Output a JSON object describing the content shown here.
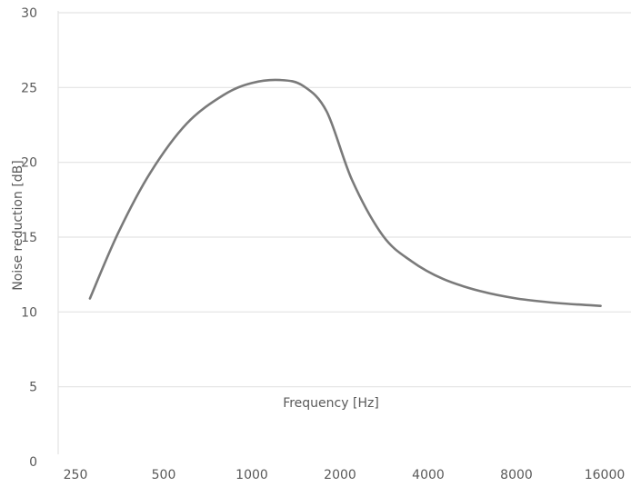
{
  "chart_data": {
    "type": "line",
    "title": "",
    "xlabel": "Frequency [Hz]",
    "ylabel": "Noise reduction [dB]",
    "x_scale": "log2",
    "x_ticks": [
      250,
      500,
      1000,
      2000,
      4000,
      8000,
      16000
    ],
    "x_tick_labels": [
      "250",
      "500",
      "1000",
      "2000",
      "4000",
      "8000",
      "16000"
    ],
    "y_ticks": [
      0,
      5,
      10,
      15,
      20,
      25,
      30
    ],
    "y_tick_labels": [
      "0",
      "5",
      "10",
      "15",
      "20",
      "25",
      "30"
    ],
    "ylim": [
      0,
      30
    ],
    "grid": "horizontal",
    "legend": "none",
    "line_color": "#7a7a7a",
    "grid_color": "#e3e3e3",
    "text_color": "#595959",
    "series": [
      {
        "x": [
          280,
          350,
          450,
          600,
          800,
          1000,
          1250,
          1500,
          1800,
          2200,
          2800,
          3500,
          4500,
          6000,
          8000,
          11000,
          15500
        ],
        "y": [
          10.9,
          15.3,
          19.3,
          22.6,
          24.5,
          25.3,
          25.5,
          25.1,
          23.4,
          18.8,
          15.1,
          13.4,
          12.2,
          11.4,
          10.9,
          10.6,
          10.4
        ]
      }
    ]
  }
}
